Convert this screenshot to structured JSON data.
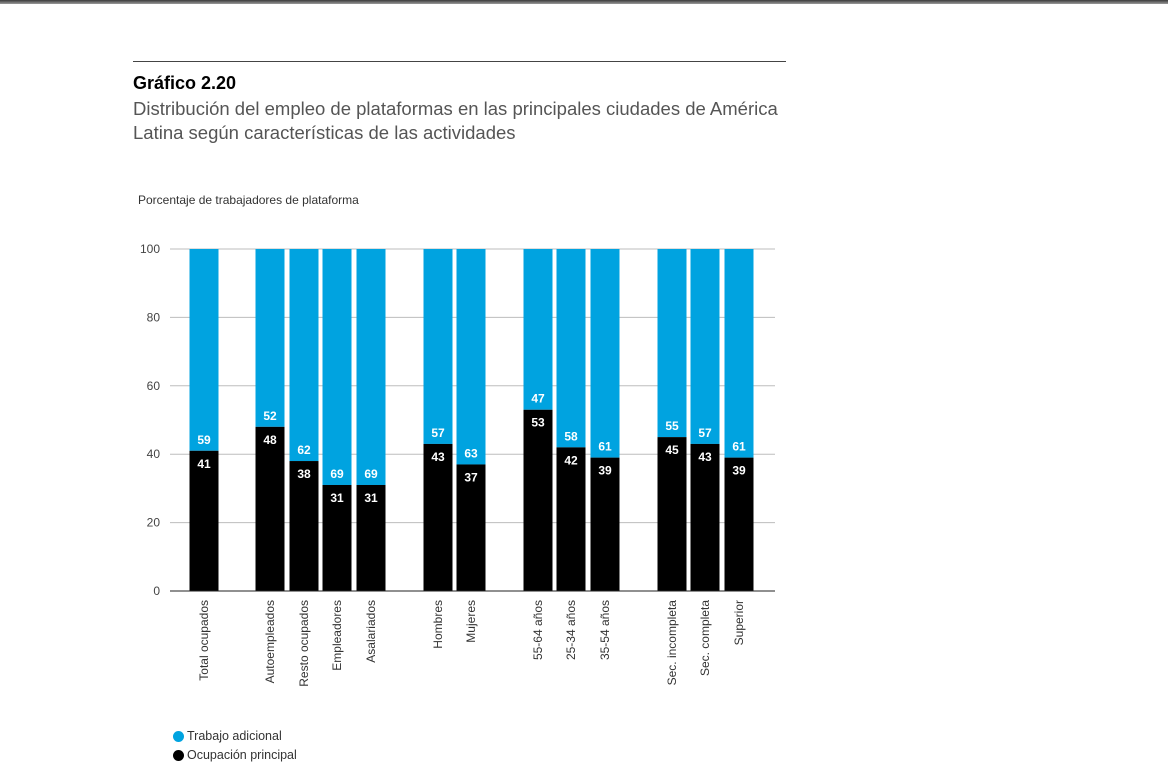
{
  "figure": {
    "label": "Gráfico 2.20",
    "title": "Distribución del empleo de plataformas en las principales ciudades de América Latina según características de las actividades",
    "units": "Porcentaje de trabajadores de plataforma"
  },
  "colors": {
    "adicional": "#00a3e0",
    "principal": "#000000",
    "grid": "#bdbdbd"
  },
  "chart_data": {
    "type": "bar",
    "stacked": true,
    "title": "Distribución del empleo de plataformas en las principales ciudades de América Latina según características de las actividades",
    "ylabel": "Porcentaje de trabajadores de plataforma",
    "ylim": [
      0,
      100
    ],
    "yticks": [
      0,
      20,
      40,
      60,
      80,
      100
    ],
    "grid": true,
    "legend_position": "bottom-left",
    "groups": [
      [
        "Total ocupados"
      ],
      [
        "Autoempleados",
        "Resto ocupados",
        "Empleadores",
        "Asalariados"
      ],
      [
        "Hombres",
        "Mujeres"
      ],
      [
        "55-64 años",
        "25-34 años",
        "35-54 años"
      ],
      [
        "Sec. incompleta",
        "Sec. completa",
        "Superior"
      ]
    ],
    "categories": [
      "Total ocupados",
      "Autoempleados",
      "Resto ocupados",
      "Empleadores",
      "Asalariados",
      "Hombres",
      "Mujeres",
      "55-64 años",
      "25-34 años",
      "35-54 años",
      "Sec. incompleta",
      "Sec. completa",
      "Superior"
    ],
    "series": [
      {
        "name": "Ocupación principal",
        "color": "#000000",
        "values": [
          41,
          48,
          38,
          31,
          31,
          43,
          37,
          53,
          42,
          39,
          45,
          43,
          39
        ]
      },
      {
        "name": "Trabajo adicional",
        "color": "#00a3e0",
        "values": [
          59,
          52,
          62,
          69,
          69,
          57,
          63,
          47,
          58,
          61,
          55,
          57,
          61
        ]
      }
    ]
  },
  "legend": [
    {
      "label": "Trabajo adicional",
      "color": "#00a3e0"
    },
    {
      "label": "Ocupación principal",
      "color": "#000000"
    }
  ]
}
